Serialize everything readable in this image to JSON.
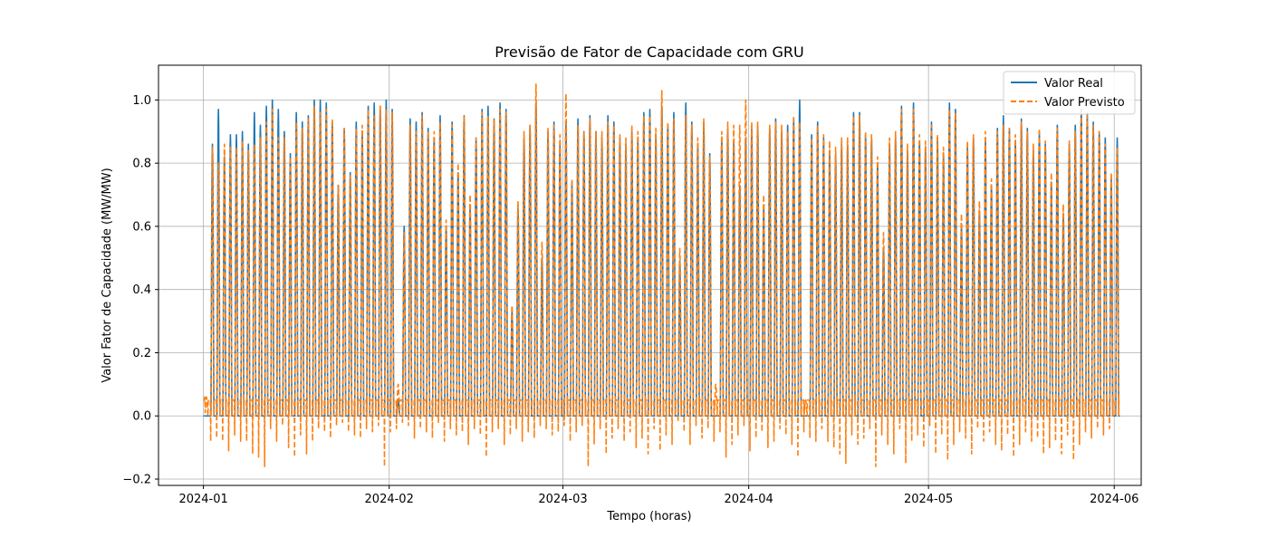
{
  "chart_data": {
    "type": "line",
    "title": "Previsão de Fator de Capacidade com GRU",
    "xlabel": "Tempo (horas)",
    "ylabel": "Valor Fator de Capacidade (MW/MW)",
    "x_range": [
      "2023-12-24 12:00",
      "2024-06-05 12:00"
    ],
    "ylim": [
      -0.22,
      1.11
    ],
    "x_ticks": [
      "2024-01-01",
      "2024-02-01",
      "2024-03-01",
      "2024-04-01",
      "2024-05-01",
      "2024-06-01"
    ],
    "x_tick_labels": [
      "2024-01",
      "2024-02",
      "2024-03",
      "2024-04",
      "2024-05",
      "2024-06"
    ],
    "y_ticks": [
      -0.2,
      0.0,
      0.2,
      0.4,
      0.6,
      0.8,
      1.0
    ],
    "y_tick_labels": [
      "−0.2",
      "0.0",
      "0.2",
      "0.4",
      "0.6",
      "0.8",
      "1.0"
    ],
    "grid": true,
    "legend_position": "upper-right",
    "x_start": "2024-01-01",
    "x_step": "1 hour",
    "series": [
      {
        "name": "Valor Real",
        "color": "#1f77b4",
        "style": "solid",
        "daily_peak": [
          0.0,
          0.86,
          0.97,
          0.82,
          0.89,
          0.89,
          0.9,
          0.86,
          0.96,
          0.92,
          0.98,
          1.0,
          0.97,
          0.9,
          0.83,
          0.96,
          0.93,
          0.95,
          1.0,
          1.0,
          0.99,
          0.93,
          0.73,
          0.91,
          0.77,
          0.93,
          0.9,
          0.98,
          0.99,
          0.98,
          1.0,
          0.97,
          0.05,
          0.6,
          0.94,
          0.93,
          0.96,
          0.91,
          0.88,
          0.95,
          0.6,
          0.93,
          0.77,
          0.95,
          0.66,
          0.88,
          0.97,
          0.98,
          0.94,
          0.99,
          0.97,
          0.33,
          0.66,
          0.88,
          0.92,
          0.99,
          0.5,
          0.9,
          0.93,
          0.86,
          0.93,
          0.74,
          0.94,
          0.9,
          0.95,
          0.9,
          0.88,
          0.95,
          0.93,
          0.88,
          0.86,
          0.9,
          0.88,
          0.96,
          0.97,
          0.89,
          0.98,
          0.92,
          0.96,
          0.49,
          0.99,
          0.93,
          0.86,
          0.93,
          0.83,
          0.0,
          0.88,
          0.91,
          0.87,
          0.73,
          0.88,
          0.91,
          0.92,
          0.66,
          0.91,
          0.94,
          0.9,
          0.92,
          0.94,
          1.0,
          0.0,
          0.89,
          0.93,
          0.88,
          0.84,
          0.82,
          0.86,
          0.86,
          0.96,
          0.96,
          0.89,
          0.88,
          0.8,
          0.53,
          0.86,
          0.88,
          0.98,
          0.84,
          0.99,
          0.87,
          0.85,
          0.93,
          0.88,
          0.83,
          0.99,
          0.97,
          0.6,
          0.85,
          0.88,
          0.65,
          0.87,
          0.73,
          0.91,
          0.95,
          0.91,
          0.87,
          0.94,
          0.91,
          0.84,
          0.9,
          0.86,
          0.74,
          0.92,
          0.64,
          0.86,
          0.92,
          0.97,
          0.96,
          0.93,
          0.9,
          0.88,
          0.75,
          0.88
        ]
      },
      {
        "name": "Valor Previsto",
        "color": "#ff7f0e",
        "style": "dashed",
        "daily_peak": [
          0.06,
          0.85,
          0.8,
          0.86,
          0.85,
          0.85,
          0.87,
          0.84,
          0.86,
          0.88,
          0.93,
          0.97,
          0.88,
          0.88,
          0.82,
          0.93,
          0.91,
          0.94,
          0.98,
          0.96,
          0.97,
          0.94,
          0.73,
          0.91,
          0.76,
          0.91,
          0.92,
          0.97,
          0.95,
          0.98,
          0.97,
          0.96,
          0.1,
          0.58,
          0.92,
          0.9,
          0.95,
          0.9,
          0.9,
          0.93,
          0.62,
          0.92,
          0.8,
          0.95,
          0.7,
          0.88,
          0.96,
          0.95,
          0.94,
          0.97,
          0.96,
          0.35,
          0.68,
          0.9,
          0.92,
          1.05,
          0.55,
          0.91,
          0.92,
          0.89,
          1.02,
          0.75,
          0.92,
          0.9,
          0.94,
          0.9,
          0.9,
          0.93,
          0.92,
          0.89,
          0.88,
          0.92,
          0.9,
          0.95,
          0.95,
          0.91,
          1.03,
          0.93,
          0.94,
          0.53,
          0.95,
          0.92,
          0.88,
          0.94,
          0.82,
          0.1,
          0.9,
          0.93,
          0.92,
          0.92,
          1.0,
          0.93,
          0.93,
          0.7,
          0.92,
          0.93,
          0.92,
          0.9,
          0.95,
          0.93,
          0.05,
          0.88,
          0.92,
          0.89,
          0.87,
          0.85,
          0.88,
          0.88,
          0.95,
          0.95,
          0.9,
          0.89,
          0.82,
          0.58,
          0.88,
          0.9,
          0.97,
          0.86,
          0.97,
          0.89,
          0.87,
          0.92,
          0.89,
          0.85,
          0.97,
          0.96,
          0.64,
          0.87,
          0.89,
          0.68,
          0.9,
          0.75,
          0.9,
          0.92,
          0.91,
          0.89,
          0.93,
          0.9,
          0.86,
          0.91,
          0.87,
          0.77,
          0.91,
          0.67,
          0.87,
          0.9,
          0.96,
          0.95,
          0.92,
          0.9,
          0.86,
          0.77,
          0.85
        ],
        "daily_trough": [
          0.06,
          -0.08,
          -0.07,
          -0.08,
          -0.11,
          -0.06,
          -0.08,
          -0.08,
          -0.12,
          -0.13,
          -0.16,
          -0.04,
          -0.08,
          -0.03,
          -0.1,
          -0.13,
          -0.06,
          -0.12,
          -0.08,
          -0.04,
          -0.05,
          -0.07,
          -0.03,
          -0.02,
          -0.05,
          -0.06,
          -0.07,
          -0.04,
          -0.05,
          -0.03,
          -0.16,
          -0.05,
          -0.04,
          -0.02,
          -0.03,
          -0.07,
          -0.04,
          -0.05,
          -0.07,
          -0.02,
          -0.08,
          -0.04,
          -0.06,
          -0.05,
          -0.09,
          -0.04,
          -0.06,
          -0.13,
          -0.05,
          -0.04,
          -0.09,
          -0.06,
          -0.04,
          -0.08,
          -0.05,
          -0.07,
          -0.03,
          -0.04,
          -0.06,
          -0.05,
          -0.03,
          -0.08,
          -0.05,
          -0.03,
          -0.16,
          -0.09,
          -0.04,
          -0.12,
          -0.07,
          -0.04,
          -0.08,
          -0.05,
          -0.1,
          -0.07,
          -0.12,
          -0.04,
          -0.11,
          -0.06,
          -0.09,
          -0.02,
          -0.05,
          -0.09,
          -0.03,
          -0.07,
          -0.04,
          -0.08,
          -0.05,
          -0.13,
          -0.09,
          -0.06,
          -0.03,
          -0.11,
          -0.07,
          -0.05,
          -0.1,
          -0.08,
          -0.04,
          -0.06,
          -0.09,
          -0.13,
          -0.05,
          -0.07,
          -0.08,
          -0.04,
          -0.08,
          -0.1,
          -0.12,
          -0.15,
          -0.06,
          -0.09,
          -0.07,
          -0.04,
          -0.16,
          -0.06,
          -0.09,
          -0.12,
          -0.04,
          -0.15,
          -0.08,
          -0.06,
          -0.1,
          -0.03,
          -0.12,
          -0.06,
          -0.14,
          -0.09,
          -0.05,
          -0.07,
          -0.12,
          -0.04,
          -0.08,
          -0.05,
          -0.09,
          -0.11,
          -0.06,
          -0.13,
          -0.09,
          -0.05,
          -0.08,
          -0.07,
          -0.12,
          -0.1,
          -0.08,
          -0.12,
          -0.06,
          -0.14,
          -0.09,
          -0.05,
          -0.07,
          -0.04,
          -0.06,
          -0.04
        ]
      }
    ]
  }
}
